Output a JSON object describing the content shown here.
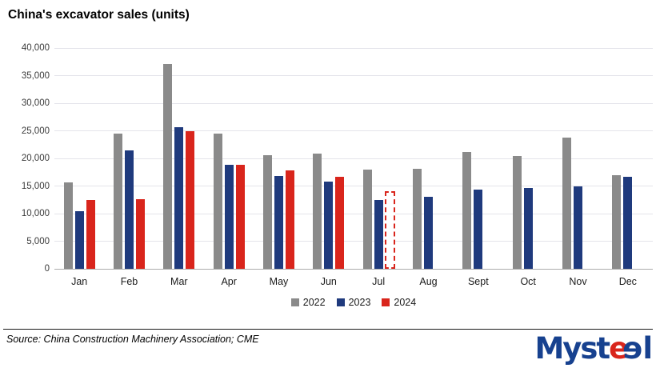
{
  "title": "China's excavator sales (units)",
  "chart_data": {
    "type": "bar",
    "title": "China's excavator sales (units)",
    "categories": [
      "Jan",
      "Feb",
      "Mar",
      "Apr",
      "May",
      "Jun",
      "Jul",
      "Aug",
      "Sept",
      "Oct",
      "Nov",
      "Dec"
    ],
    "series": [
      {
        "name": "2022",
        "color": "#8a8a8a",
        "values": [
          15600,
          24500,
          37100,
          24500,
          20600,
          20800,
          17900,
          18100,
          21200,
          20500,
          23700,
          16900
        ]
      },
      {
        "name": "2023",
        "color": "#1f3a7d",
        "values": [
          10400,
          21400,
          25600,
          18800,
          16800,
          15800,
          12500,
          13100,
          14300,
          14600,
          14900,
          16700
        ]
      },
      {
        "name": "2024",
        "color": "#d9251c",
        "values": [
          12400,
          12600,
          25000,
          18800,
          17800,
          16600,
          14000,
          null,
          null,
          null,
          null,
          null
        ],
        "dashed_categories": [
          "Jul"
        ],
        "dashed_note": "Jul 2024 shown as dashed outline (estimate)"
      }
    ],
    "ylim": [
      0,
      40000
    ],
    "ytick_step": 5000,
    "ytick_labels": [
      "0",
      "5,000",
      "10,000",
      "15,000",
      "20,000",
      "25,000",
      "30,000",
      "35,000",
      "40,000"
    ],
    "grid": "horizontal",
    "legend_position": "bottom-center"
  },
  "legend": {
    "items": [
      {
        "label": "2022",
        "color": "#8a8a8a"
      },
      {
        "label": "2023",
        "color": "#1f3a7d"
      },
      {
        "label": "2024",
        "color": "#d9251c"
      }
    ]
  },
  "footer": {
    "source": "Source: China Construction Machinery Association; CME"
  },
  "logo": {
    "text": "Mysteel",
    "parts": {
      "head": "Myst",
      "e1": "e",
      "e2": "e",
      "tail": "l"
    },
    "blue": "#17418f",
    "red": "#d9251c"
  }
}
